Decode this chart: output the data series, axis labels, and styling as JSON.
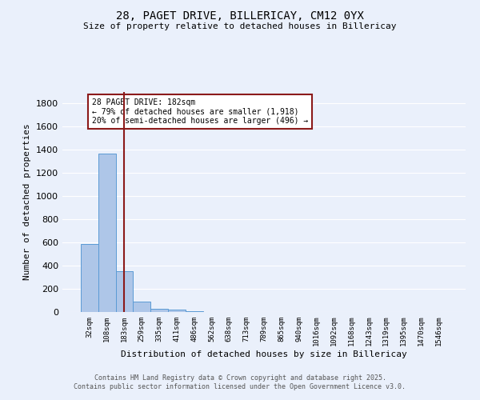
{
  "title1": "28, PAGET DRIVE, BILLERICAY, CM12 0YX",
  "title2": "Size of property relative to detached houses in Billericay",
  "xlabel": "Distribution of detached houses by size in Billericay",
  "ylabel": "Number of detached properties",
  "categories": [
    "32sqm",
    "108sqm",
    "183sqm",
    "259sqm",
    "335sqm",
    "411sqm",
    "486sqm",
    "562sqm",
    "638sqm",
    "713sqm",
    "789sqm",
    "865sqm",
    "940sqm",
    "1016sqm",
    "1092sqm",
    "1168sqm",
    "1243sqm",
    "1319sqm",
    "1395sqm",
    "1470sqm",
    "1546sqm"
  ],
  "values": [
    590,
    1370,
    350,
    93,
    30,
    18,
    10,
    0,
    0,
    0,
    0,
    0,
    0,
    0,
    0,
    0,
    0,
    0,
    0,
    0,
    0
  ],
  "bar_color": "#aec6e8",
  "bar_edge_color": "#5b9bd5",
  "vline_x": 2,
  "vline_color": "#8b1a1a",
  "annotation_text": "28 PAGET DRIVE: 182sqm\n← 79% of detached houses are smaller (1,918)\n20% of semi-detached houses are larger (496) →",
  "annotation_box_color": "#ffffff",
  "annotation_box_edge": "#8b1a1a",
  "ylim": [
    0,
    1900
  ],
  "yticks": [
    0,
    200,
    400,
    600,
    800,
    1000,
    1200,
    1400,
    1600,
    1800
  ],
  "background_color": "#eaf0fb",
  "grid_color": "#ffffff",
  "fig_background": "#eaf0fb",
  "footer1": "Contains HM Land Registry data © Crown copyright and database right 2025.",
  "footer2": "Contains public sector information licensed under the Open Government Licence v3.0."
}
